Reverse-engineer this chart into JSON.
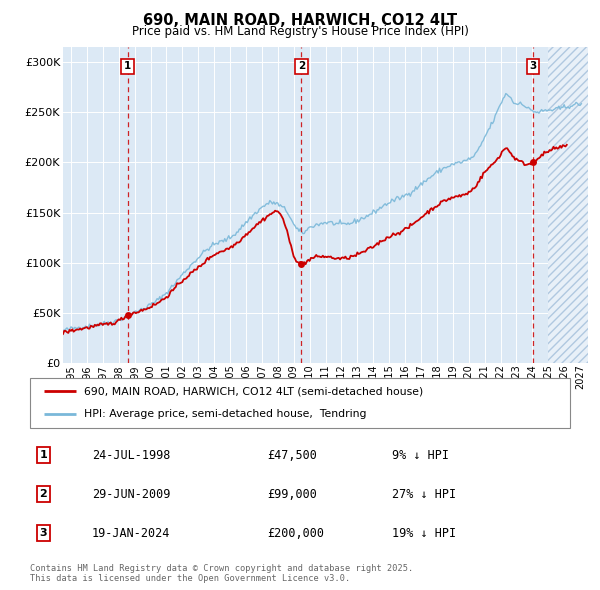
{
  "title": "690, MAIN ROAD, HARWICH, CO12 4LT",
  "subtitle": "Price paid vs. HM Land Registry's House Price Index (HPI)",
  "hpi_label": "HPI: Average price, semi-detached house,  Tendring",
  "property_label": "690, MAIN ROAD, HARWICH, CO12 4LT (semi-detached house)",
  "transactions": [
    {
      "num": 1,
      "date": "24-JUL-1998",
      "price": 47500,
      "pct": "9%",
      "x_year": 1998.56
    },
    {
      "num": 2,
      "date": "29-JUN-2009",
      "price": 99000,
      "pct": "27%",
      "x_year": 2009.49
    },
    {
      "num": 3,
      "date": "19-JAN-2024",
      "price": 200000,
      "pct": "19%",
      "x_year": 2024.05
    }
  ],
  "ylabel_ticks": [
    "£0",
    "£50K",
    "£100K",
    "£150K",
    "£200K",
    "£250K",
    "£300K"
  ],
  "ytick_values": [
    0,
    50000,
    100000,
    150000,
    200000,
    250000,
    300000
  ],
  "xlim": [
    1994.5,
    2027.5
  ],
  "ylim": [
    0,
    315000
  ],
  "hpi_color": "#7ab8d9",
  "price_color": "#cc0000",
  "dashed_color": "#cc0000",
  "background_color": "#dce9f5",
  "hatch_edge_color": "#afc8e0",
  "grid_color": "#ffffff",
  "footer": "Contains HM Land Registry data © Crown copyright and database right 2025.\nThis data is licensed under the Open Government Licence v3.0."
}
